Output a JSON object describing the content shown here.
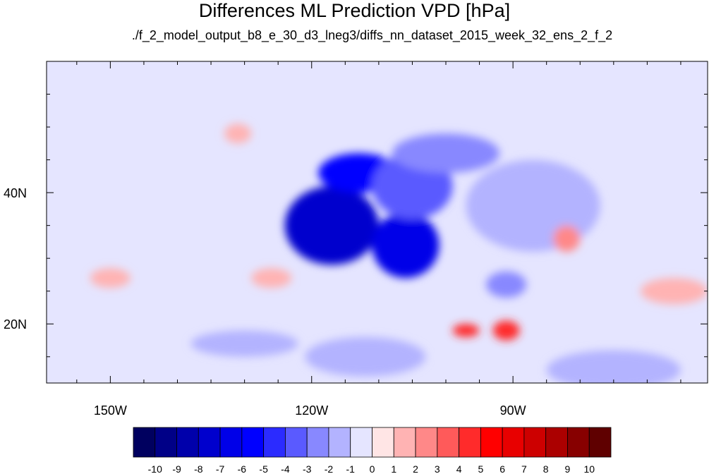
{
  "chart_data": {
    "type": "heatmap",
    "title": "Differences ML Prediction VPD [hPa]",
    "subtitle": "./f_2_model_output_b8_e_30_d3_lneg3/diffs_nn_dataset_2015_week_32_ens_2_f_2",
    "map": {
      "lon_range": [
        -159.5,
        -61
      ],
      "lat_range": [
        11,
        60
      ],
      "x_ticks": [
        {
          "value": -150,
          "label": "150W"
        },
        {
          "value": -120,
          "label": "120W"
        },
        {
          "value": -90,
          "label": "90W"
        }
      ],
      "y_ticks": [
        {
          "value": 40,
          "label": "40N"
        },
        {
          "value": 20,
          "label": "20N"
        }
      ]
    },
    "colorbar": {
      "levels": [
        "-10",
        "-9",
        "-8",
        "-7",
        "-6",
        "-5",
        "-4",
        "-3",
        "-2",
        "-1",
        "0",
        "1",
        "2",
        "3",
        "4",
        "5",
        "6",
        "7",
        "8",
        "9",
        "10"
      ],
      "colors": [
        "#00005f",
        "#000087",
        "#0000ab",
        "#0000cd",
        "#0000e8",
        "#0000ff",
        "#2b2bff",
        "#5a5aff",
        "#8888ff",
        "#b3b3ff",
        "#e5e5ff",
        "#ffe5e5",
        "#ffb3b3",
        "#ff8888",
        "#ff5a5a",
        "#ff2b2b",
        "#ff0000",
        "#e80000",
        "#cd0000",
        "#ab0000",
        "#870000",
        "#5f0000"
      ]
    },
    "regions": [
      {
        "name": "",
        "value": -7.5,
        "lon": -117,
        "lat": 35,
        "rx": 7,
        "ry": 6
      },
      {
        "name": "",
        "value": -7,
        "lon": -106,
        "lat": 32,
        "rx": 5,
        "ry": 5
      },
      {
        "name": "",
        "value": -5.5,
        "lon": -113,
        "lat": 43,
        "rx": 6,
        "ry": 3
      },
      {
        "name": "",
        "value": -4,
        "lon": -105,
        "lat": 41,
        "rx": 6,
        "ry": 5
      },
      {
        "name": "",
        "value": -2.5,
        "lon": -100,
        "lat": 46,
        "rx": 8,
        "ry": 3
      },
      {
        "name": "",
        "value": -3,
        "lon": -91,
        "lat": 26,
        "rx": 3,
        "ry": 2
      },
      {
        "name": "",
        "value": -1.5,
        "lon": -87,
        "lat": 38,
        "rx": 10,
        "ry": 7
      },
      {
        "name": "",
        "value": -1.5,
        "lon": -130,
        "lat": 17,
        "rx": 8,
        "ry": 2
      },
      {
        "name": "",
        "value": -1.5,
        "lon": -112,
        "lat": 15,
        "rx": 9,
        "ry": 3
      },
      {
        "name": "",
        "value": -2,
        "lon": -75,
        "lat": 13,
        "rx": 10,
        "ry": 3
      },
      {
        "name": "",
        "value": 4.5,
        "lon": -91,
        "lat": 19,
        "rx": 2,
        "ry": 1.5
      },
      {
        "name": "",
        "value": 4,
        "lon": -97,
        "lat": 19,
        "rx": 2,
        "ry": 1
      },
      {
        "name": "",
        "value": 2.5,
        "lon": -82,
        "lat": 33,
        "rx": 2,
        "ry": 2
      },
      {
        "name": "",
        "value": 1.5,
        "lon": -66,
        "lat": 25,
        "rx": 5,
        "ry": 2
      },
      {
        "name": "",
        "value": 1.5,
        "lon": -126,
        "lat": 27,
        "rx": 3,
        "ry": 1.5
      },
      {
        "name": "",
        "value": 1.5,
        "lon": -150,
        "lat": 27,
        "rx": 3,
        "ry": 1.5
      },
      {
        "name": "",
        "value": 1,
        "lon": -131,
        "lat": 49,
        "rx": 2,
        "ry": 1.5
      }
    ]
  }
}
